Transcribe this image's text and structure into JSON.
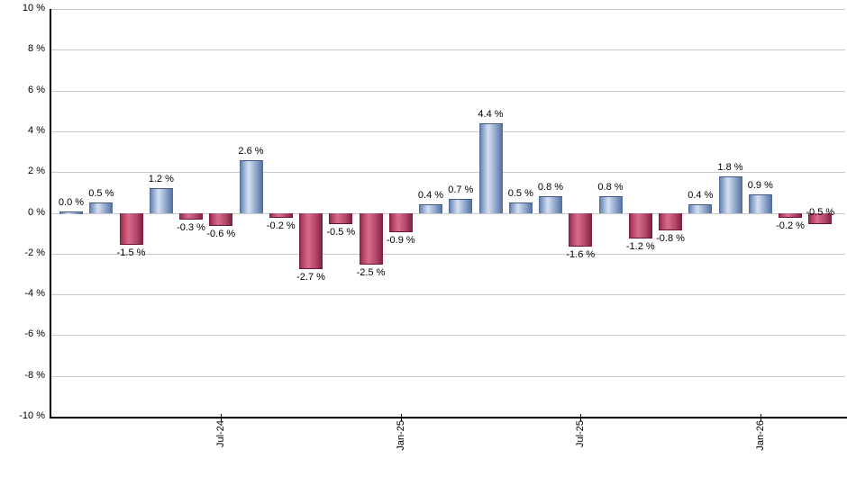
{
  "chart_data": {
    "type": "bar",
    "title": "",
    "xlabel": "",
    "ylabel": "",
    "n_bars": 26,
    "values": [
      0.0,
      0.5,
      -1.5,
      1.2,
      -0.3,
      -0.6,
      2.6,
      -0.2,
      -2.7,
      -0.5,
      -2.5,
      -0.9,
      0.4,
      0.7,
      4.4,
      0.5,
      0.8,
      -1.6,
      0.8,
      -1.2,
      -0.8,
      0.4,
      1.8,
      0.9,
      -0.2,
      -0.5
    ],
    "bar_labels": [
      "0.0 %",
      "0.5 %",
      "-1.5 %",
      "1.2 %",
      "-0.3 %",
      "-0.6 %",
      "2.6 %",
      "-0.2 %",
      "-2.7 %",
      "-0.5 %",
      "-2.5 %",
      "-0.9 %",
      "0.4 %",
      "0.7 %",
      "4.4 %",
      "0.5 %",
      "0.8 %",
      "-1.6 %",
      "0.8 %",
      "-1.2 %",
      "-0.8 %",
      "0.4 %",
      "1.8 %",
      "0.9 %",
      "-0.2 %",
      "-0.5 %"
    ],
    "x_ticks": [
      {
        "label": "Jul-24",
        "bar_index": 5
      },
      {
        "label": "Jan-25",
        "bar_index": 11
      },
      {
        "label": "Jul-25",
        "bar_index": 17
      },
      {
        "label": "Jan-26",
        "bar_index": 23
      }
    ],
    "y_ticks": [
      "10 %",
      "8 %",
      "6 %",
      "4 %",
      "2 %",
      "0 %",
      "-2 %",
      "-4 %",
      "-6 %",
      "-8 %",
      "-10 %"
    ],
    "ylim": [
      -10,
      10
    ],
    "y_step": 2,
    "grid": "horizontal",
    "legend": "none",
    "colors": {
      "positive_bar_gradient": [
        "#4f6c9c",
        "#7b96c0",
        "#d6e0f1",
        "#8aa2c8",
        "#4f6c9c"
      ],
      "negative_bar_gradient": [
        "#7c1c3a",
        "#a83a5c",
        "#d96c8a",
        "#b0476a",
        "#7c1c3a"
      ],
      "gridline": "#c9c9c9",
      "axis": "#000000",
      "label_text": "#000000",
      "background": "#ffffff"
    }
  }
}
